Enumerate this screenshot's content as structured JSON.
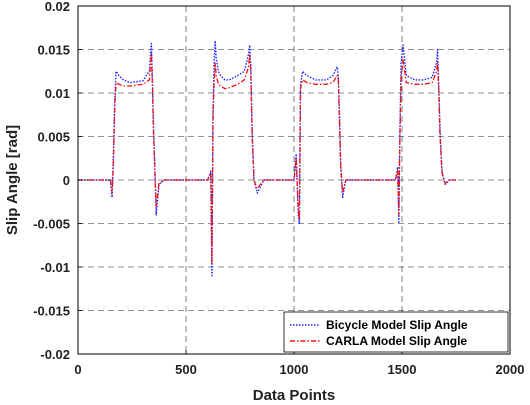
{
  "chart_data": {
    "type": "line",
    "title": "",
    "xlabel": "Data Points",
    "ylabel": "Slip Angle [rad]",
    "xlim": [
      0,
      2000
    ],
    "ylim": [
      -0.02,
      0.02
    ],
    "xticks": [
      0,
      500,
      1000,
      1500,
      2000
    ],
    "yticks": [
      -0.02,
      -0.015,
      -0.01,
      -0.005,
      0,
      0.005,
      0.01,
      0.015,
      0.02
    ],
    "xtick_labels": [
      "0",
      "500",
      "1000",
      "1500",
      "2000"
    ],
    "ytick_labels": [
      "-0.02",
      "-0.015",
      "-0.01",
      "-0.005",
      "0",
      "0.005",
      "0.01",
      "0.015",
      "0.02"
    ],
    "grid": true,
    "legend_position": "bottom-right",
    "series": [
      {
        "name": "Bicycle Model Slip Angle",
        "color": "#1f1fff",
        "style": "dotted",
        "x": [
          0,
          150,
          158,
          164,
          170,
          176,
          190,
          210,
          240,
          270,
          300,
          330,
          340,
          345,
          350,
          355,
          362,
          375,
          400,
          450,
          500,
          550,
          600,
          615,
          620,
          625,
          630,
          635,
          640,
          650,
          660,
          680,
          700,
          740,
          770,
          790,
          795,
          800,
          806,
          815,
          830,
          860,
          900,
          950,
          1000,
          1010,
          1020,
          1025,
          1030,
          1040,
          1060,
          1100,
          1150,
          1180,
          1200,
          1205,
          1210,
          1216,
          1225,
          1240,
          1280,
          1350,
          1420,
          1470,
          1480,
          1485,
          1490,
          1496,
          1505,
          1520,
          1560,
          1600,
          1640,
          1660,
          1665,
          1670,
          1676,
          1685,
          1700,
          1720,
          1750
        ],
        "y": [
          0,
          0,
          -0.002,
          0.003,
          0.009,
          0.0125,
          0.012,
          0.0115,
          0.0112,
          0.0113,
          0.0114,
          0.0125,
          0.0157,
          0.011,
          0.006,
          0.002,
          -0.004,
          -0.0005,
          0,
          0,
          0,
          0,
          0,
          0.001,
          -0.011,
          0.008,
          0.0135,
          0.016,
          0.014,
          0.0125,
          0.012,
          0.0115,
          0.0115,
          0.012,
          0.0125,
          0.0145,
          0.0155,
          0.013,
          0.006,
          0,
          -0.0015,
          0,
          0,
          0,
          0,
          0.003,
          -0.004,
          -0.005,
          0.011,
          0.0125,
          0.012,
          0.0115,
          0.0115,
          0.012,
          0.013,
          0.012,
          0.008,
          0.002,
          -0.002,
          0,
          0,
          0,
          0,
          0,
          0.0015,
          -0.005,
          0.005,
          0.0135,
          0.0155,
          0.012,
          0.0115,
          0.0115,
          0.0118,
          0.0135,
          0.015,
          0.011,
          0.006,
          0.001,
          -0.0005,
          0,
          0
        ]
      },
      {
        "name": "CARLA Model Slip Angle",
        "color": "#ee1111",
        "style": "dashdot",
        "x": [
          0,
          150,
          158,
          164,
          170,
          176,
          190,
          210,
          240,
          270,
          300,
          330,
          340,
          345,
          350,
          355,
          362,
          375,
          400,
          450,
          500,
          550,
          600,
          615,
          620,
          625,
          630,
          635,
          640,
          650,
          660,
          680,
          700,
          740,
          770,
          790,
          795,
          800,
          806,
          815,
          830,
          860,
          900,
          950,
          1000,
          1010,
          1020,
          1025,
          1030,
          1040,
          1060,
          1100,
          1150,
          1180,
          1200,
          1205,
          1210,
          1216,
          1225,
          1240,
          1280,
          1350,
          1420,
          1470,
          1480,
          1485,
          1490,
          1496,
          1505,
          1520,
          1560,
          1600,
          1640,
          1660,
          1665,
          1670,
          1676,
          1685,
          1700,
          1720,
          1750
        ],
        "y": [
          0,
          0,
          -0.0015,
          0.002,
          0.008,
          0.0112,
          0.011,
          0.0108,
          0.0108,
          0.0109,
          0.011,
          0.0115,
          0.0145,
          0.0105,
          0.005,
          0.0015,
          -0.003,
          -0.0004,
          0,
          0,
          0,
          0,
          0,
          0.0008,
          -0.0095,
          0.007,
          0.011,
          0.0135,
          0.012,
          0.011,
          0.0108,
          0.0105,
          0.0106,
          0.011,
          0.0115,
          0.013,
          0.0145,
          0.0125,
          0.005,
          0,
          -0.001,
          0,
          0,
          0,
          0,
          0.0025,
          -0.0035,
          -0.0045,
          0.0105,
          0.0115,
          0.0112,
          0.011,
          0.011,
          0.0112,
          0.012,
          0.0115,
          0.007,
          0.0015,
          -0.0015,
          0,
          0,
          0,
          0,
          0,
          0.0012,
          -0.004,
          0.004,
          0.0118,
          0.0138,
          0.0112,
          0.011,
          0.011,
          0.0112,
          0.0125,
          0.0135,
          0.0105,
          0.005,
          0.0008,
          -0.0004,
          0,
          0
        ]
      }
    ]
  }
}
